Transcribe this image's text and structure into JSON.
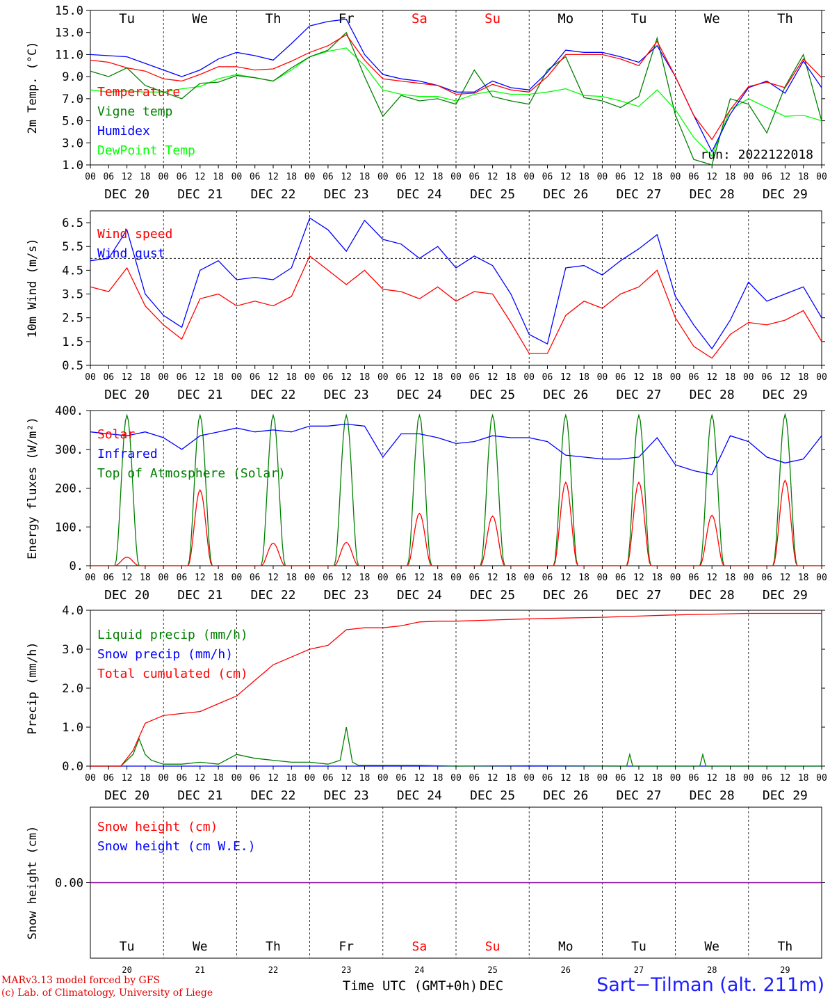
{
  "days": [
    "Tu",
    "We",
    "Th",
    "Fr",
    "Sa",
    "Su",
    "Mo",
    "Tu",
    "We",
    "Th"
  ],
  "weekend_days": [
    4,
    5
  ],
  "date_labels": [
    "DEC 20",
    "DEC 21",
    "DEC 22",
    "DEC 23",
    "DEC 24",
    "DEC 25",
    "DEC 26",
    "DEC 27",
    "DEC 28",
    "DEC 29"
  ],
  "day_numbers": [
    "20",
    "21",
    "22",
    "23",
    "24",
    "25",
    "26",
    "27",
    "28",
    "29"
  ],
  "hour_ticks": [
    "00",
    "06",
    "12",
    "18"
  ],
  "run_label": "run: 2022122018",
  "x_axis_title": "Time UTC (GMT+0h)",
  "x_axis_month": "DEC",
  "footer": {
    "model_line1": "MARv3.13 model forced by GFS",
    "model_line2": "(c) Lab. of Climatology, University of Liege",
    "station": "Sart−Tilman (alt. 211m)"
  },
  "colors": {
    "red": "#ff0000",
    "green": "#008000",
    "blue": "#0000ff",
    "lightgreen": "#00ff00",
    "purple": "#8000a0",
    "weekend": "#ff0000"
  },
  "chart_data": [
    {
      "type": "line",
      "ylabel": "2m Temp. (°C)",
      "ylim": [
        1.0,
        15.0
      ],
      "yticks": [
        "1.0",
        "3.0",
        "5.0",
        "7.0",
        "9.0",
        "11.0",
        "13.0",
        "15.0"
      ],
      "x_unit": "hours since DEC 20 00 UTC",
      "series": [
        {
          "name": "Temperature",
          "color": "red",
          "x": [
            0,
            6,
            12,
            18,
            24,
            30,
            36,
            42,
            48,
            54,
            60,
            66,
            72,
            78,
            84,
            90,
            96,
            102,
            108,
            114,
            120,
            126,
            132,
            138,
            144,
            150,
            156,
            162,
            168,
            174,
            180,
            186,
            192,
            198,
            204,
            210,
            216,
            222,
            228,
            234,
            240
          ],
          "y": [
            10.5,
            10.3,
            9.8,
            9.5,
            8.8,
            8.6,
            9.2,
            9.9,
            9.9,
            9.6,
            9.7,
            10.4,
            11.2,
            11.8,
            12.8,
            10.5,
            8.8,
            8.6,
            8.4,
            8.2,
            7.4,
            7.5,
            8.3,
            7.8,
            7.6,
            9.0,
            11.0,
            11.0,
            11.0,
            10.6,
            10.0,
            12.2,
            9.0,
            5.5,
            3.3,
            6.0,
            8.1,
            8.5,
            8.0,
            10.6,
            8.9
          ]
        },
        {
          "name": "Vigne temp",
          "color": "green",
          "x": [
            0,
            6,
            12,
            18,
            24,
            30,
            36,
            42,
            48,
            54,
            60,
            66,
            72,
            78,
            84,
            90,
            96,
            102,
            108,
            114,
            120,
            126,
            132,
            138,
            144,
            150,
            156,
            162,
            168,
            174,
            180,
            186,
            192,
            198,
            204,
            210,
            216,
            222,
            228,
            234,
            240
          ],
          "y": [
            9.5,
            9.0,
            9.8,
            8.2,
            7.6,
            7.0,
            8.4,
            8.5,
            9.1,
            8.9,
            8.6,
            9.8,
            10.8,
            11.4,
            13.0,
            9.0,
            5.4,
            7.3,
            6.8,
            7.0,
            6.5,
            9.6,
            7.2,
            6.8,
            6.5,
            9.6,
            10.8,
            7.1,
            6.8,
            6.2,
            7.2,
            12.5,
            5.5,
            1.5,
            1.0,
            7.0,
            6.5,
            3.9,
            8.1,
            11.0,
            5.0
          ]
        },
        {
          "name": "Humidex",
          "color": "blue",
          "x": [
            0,
            6,
            12,
            18,
            24,
            30,
            36,
            42,
            48,
            54,
            60,
            66,
            72,
            78,
            84,
            90,
            96,
            102,
            108,
            114,
            120,
            126,
            132,
            138,
            144,
            150,
            156,
            162,
            168,
            174,
            180,
            186,
            192,
            198,
            204,
            210,
            216,
            222,
            228,
            234,
            240
          ],
          "y": [
            11.0,
            10.9,
            10.8,
            10.2,
            9.6,
            9.0,
            9.6,
            10.6,
            11.2,
            10.9,
            10.5,
            12.0,
            13.6,
            14.0,
            14.2,
            11.0,
            9.2,
            8.8,
            8.6,
            8.2,
            7.6,
            7.6,
            8.6,
            8.0,
            7.8,
            9.4,
            11.4,
            11.2,
            11.2,
            10.8,
            10.3,
            11.8,
            9.0,
            5.5,
            2.2,
            5.6,
            8.0,
            8.6,
            7.5,
            10.4,
            8.0
          ]
        },
        {
          "name": "DewPoint Temp",
          "color": "lightgreen",
          "x": [
            0,
            6,
            12,
            18,
            24,
            30,
            36,
            42,
            48,
            54,
            60,
            66,
            72,
            78,
            84,
            90,
            96,
            102,
            108,
            114,
            120,
            126,
            132,
            138,
            144,
            150,
            156,
            162,
            168,
            174,
            180,
            186,
            192,
            198,
            204,
            210,
            216,
            222,
            228,
            234,
            240
          ],
          "y": [
            7.8,
            7.6,
            7.7,
            7.6,
            7.6,
            7.9,
            8.1,
            8.8,
            9.2,
            8.9,
            8.6,
            9.6,
            10.8,
            11.3,
            11.6,
            10.0,
            7.8,
            7.4,
            7.2,
            7.2,
            6.8,
            7.4,
            7.7,
            7.4,
            7.4,
            7.6,
            7.9,
            7.3,
            7.2,
            6.8,
            6.3,
            7.8,
            6.0,
            3.5,
            1.8,
            6.0,
            7.0,
            6.2,
            5.4,
            5.5,
            5.0
          ]
        }
      ],
      "legend": "top-left"
    },
    {
      "type": "line",
      "ylabel": "10m Wind (m/s)",
      "ylim": [
        0.5,
        7.0
      ],
      "yticks": [
        "0.5",
        "1.5",
        "2.5",
        "3.5",
        "4.5",
        "5.5",
        "6.5"
      ],
      "reference_line": 5.0,
      "x_unit": "hours since DEC 20 00 UTC",
      "series": [
        {
          "name": "Wind speed",
          "color": "red",
          "x": [
            0,
            6,
            12,
            18,
            24,
            30,
            36,
            42,
            48,
            54,
            60,
            66,
            72,
            78,
            84,
            90,
            96,
            102,
            108,
            114,
            120,
            126,
            132,
            138,
            144,
            150,
            156,
            162,
            168,
            174,
            180,
            186,
            192,
            198,
            204,
            210,
            216,
            222,
            228,
            234,
            240
          ],
          "y": [
            3.8,
            3.6,
            4.6,
            3.0,
            2.2,
            1.6,
            3.3,
            3.5,
            3.0,
            3.2,
            3.0,
            3.4,
            5.1,
            4.5,
            3.9,
            4.5,
            3.7,
            3.6,
            3.3,
            3.8,
            3.2,
            3.6,
            3.5,
            2.3,
            1.0,
            1.0,
            2.6,
            3.2,
            2.9,
            3.5,
            3.8,
            4.5,
            2.5,
            1.3,
            0.8,
            1.8,
            2.3,
            2.2,
            2.4,
            2.8,
            1.5
          ]
        },
        {
          "name": "Wind gust",
          "color": "blue",
          "x": [
            0,
            6,
            12,
            18,
            24,
            30,
            36,
            42,
            48,
            54,
            60,
            66,
            72,
            78,
            84,
            90,
            96,
            102,
            108,
            114,
            120,
            126,
            132,
            138,
            144,
            150,
            156,
            162,
            168,
            174,
            180,
            186,
            192,
            198,
            204,
            210,
            216,
            222,
            228,
            234,
            240
          ],
          "y": [
            4.9,
            5.0,
            6.2,
            3.5,
            2.6,
            2.1,
            4.5,
            4.9,
            4.1,
            4.2,
            4.1,
            4.6,
            6.7,
            6.2,
            5.3,
            6.6,
            5.8,
            5.6,
            5.0,
            5.5,
            4.6,
            5.1,
            4.7,
            3.5,
            1.8,
            1.4,
            4.6,
            4.7,
            4.3,
            4.9,
            5.4,
            6.0,
            3.4,
            2.2,
            1.2,
            2.4,
            4.0,
            3.2,
            3.5,
            3.8,
            2.5
          ]
        }
      ],
      "legend": "top-left"
    },
    {
      "type": "line",
      "ylabel": "Energy fluxes (W/m²)",
      "ylim": [
        0,
        400
      ],
      "yticks": [
        "0.",
        "100.",
        "200.",
        "300.",
        "400."
      ],
      "x_unit": "hours since DEC 20 00 UTC",
      "series": [
        {
          "name": "Solar",
          "color": "red",
          "daily_peaks": [
            22,
            195,
            58,
            60,
            135,
            128,
            215,
            215,
            130,
            220
          ]
        },
        {
          "name": "Infrared",
          "color": "blue",
          "x": [
            0,
            6,
            12,
            18,
            24,
            30,
            36,
            42,
            48,
            54,
            60,
            66,
            72,
            78,
            84,
            90,
            96,
            102,
            108,
            114,
            120,
            126,
            132,
            138,
            144,
            150,
            156,
            162,
            168,
            174,
            180,
            186,
            192,
            198,
            204,
            210,
            216,
            222,
            228,
            234,
            240
          ],
          "y": [
            345,
            340,
            335,
            345,
            330,
            300,
            335,
            345,
            355,
            345,
            350,
            345,
            360,
            360,
            365,
            360,
            280,
            340,
            340,
            330,
            315,
            320,
            335,
            330,
            330,
            320,
            285,
            280,
            275,
            275,
            280,
            330,
            260,
            245,
            235,
            335,
            320,
            280,
            265,
            275,
            335
          ]
        },
        {
          "name": "Top of Atmosphere (Solar)",
          "color": "green",
          "daily_peaks": [
            388,
            388,
            388,
            388,
            388,
            388,
            388,
            388,
            388,
            390
          ]
        }
      ],
      "daylight_hours": [
        8,
        16
      ],
      "legend": "top-left"
    },
    {
      "type": "line",
      "ylabel": "Precip (mm/h)",
      "ylim": [
        0,
        4.0
      ],
      "yticks": [
        "0.0",
        "1.0",
        "2.0",
        "3.0",
        "4.0"
      ],
      "x_unit": "hours since DEC 20 00 UTC",
      "series": [
        {
          "name": "Liquid precip (mm/h)",
          "color": "green",
          "x": [
            0,
            10,
            14,
            16,
            18,
            20,
            24,
            30,
            36,
            42,
            48,
            54,
            60,
            66,
            72,
            78,
            82,
            84,
            86,
            88,
            96,
            108,
            120,
            144,
            176,
            177,
            178,
            200,
            201,
            202,
            216,
            240
          ],
          "y": [
            0,
            0,
            0.3,
            0.7,
            0.3,
            0.15,
            0.05,
            0.05,
            0.1,
            0.05,
            0.3,
            0.2,
            0.15,
            0.1,
            0.1,
            0.05,
            0.15,
            1.0,
            0.1,
            0.02,
            0.02,
            0.02,
            0,
            0.01,
            0,
            0.3,
            0,
            0,
            0.3,
            0,
            0,
            0
          ]
        },
        {
          "name": "Snow precip (mm/h)",
          "color": "blue",
          "x": [
            0,
            240
          ],
          "y": [
            0,
            0
          ]
        },
        {
          "name": "Total cumulated (cm)",
          "color": "red",
          "x": [
            0,
            10,
            14,
            18,
            24,
            30,
            36,
            42,
            48,
            54,
            60,
            66,
            72,
            78,
            84,
            90,
            96,
            102,
            108,
            114,
            120,
            132,
            144,
            156,
            168,
            180,
            192,
            204,
            216,
            228,
            240
          ],
          "y": [
            0,
            0,
            0.4,
            1.1,
            1.3,
            1.35,
            1.4,
            1.6,
            1.8,
            2.2,
            2.6,
            2.8,
            3.0,
            3.1,
            3.5,
            3.55,
            3.55,
            3.6,
            3.7,
            3.72,
            3.72,
            3.75,
            3.78,
            3.8,
            3.82,
            3.85,
            3.88,
            3.9,
            3.92,
            3.92,
            3.92
          ]
        }
      ],
      "legend": "top-left"
    },
    {
      "type": "line",
      "ylabel": "Snow height (cm)",
      "yticks": [
        "0.00"
      ],
      "x_unit": "hours since DEC 20 00 UTC",
      "series": [
        {
          "name": "Snow height (cm)",
          "color": "red",
          "x": [
            0,
            240
          ],
          "y": [
            0,
            0
          ]
        },
        {
          "name": "Snow height (cm W.E.)",
          "color": "blue",
          "x": [
            0,
            240
          ],
          "y": [
            0,
            0
          ]
        }
      ],
      "legend": "top-left"
    }
  ]
}
